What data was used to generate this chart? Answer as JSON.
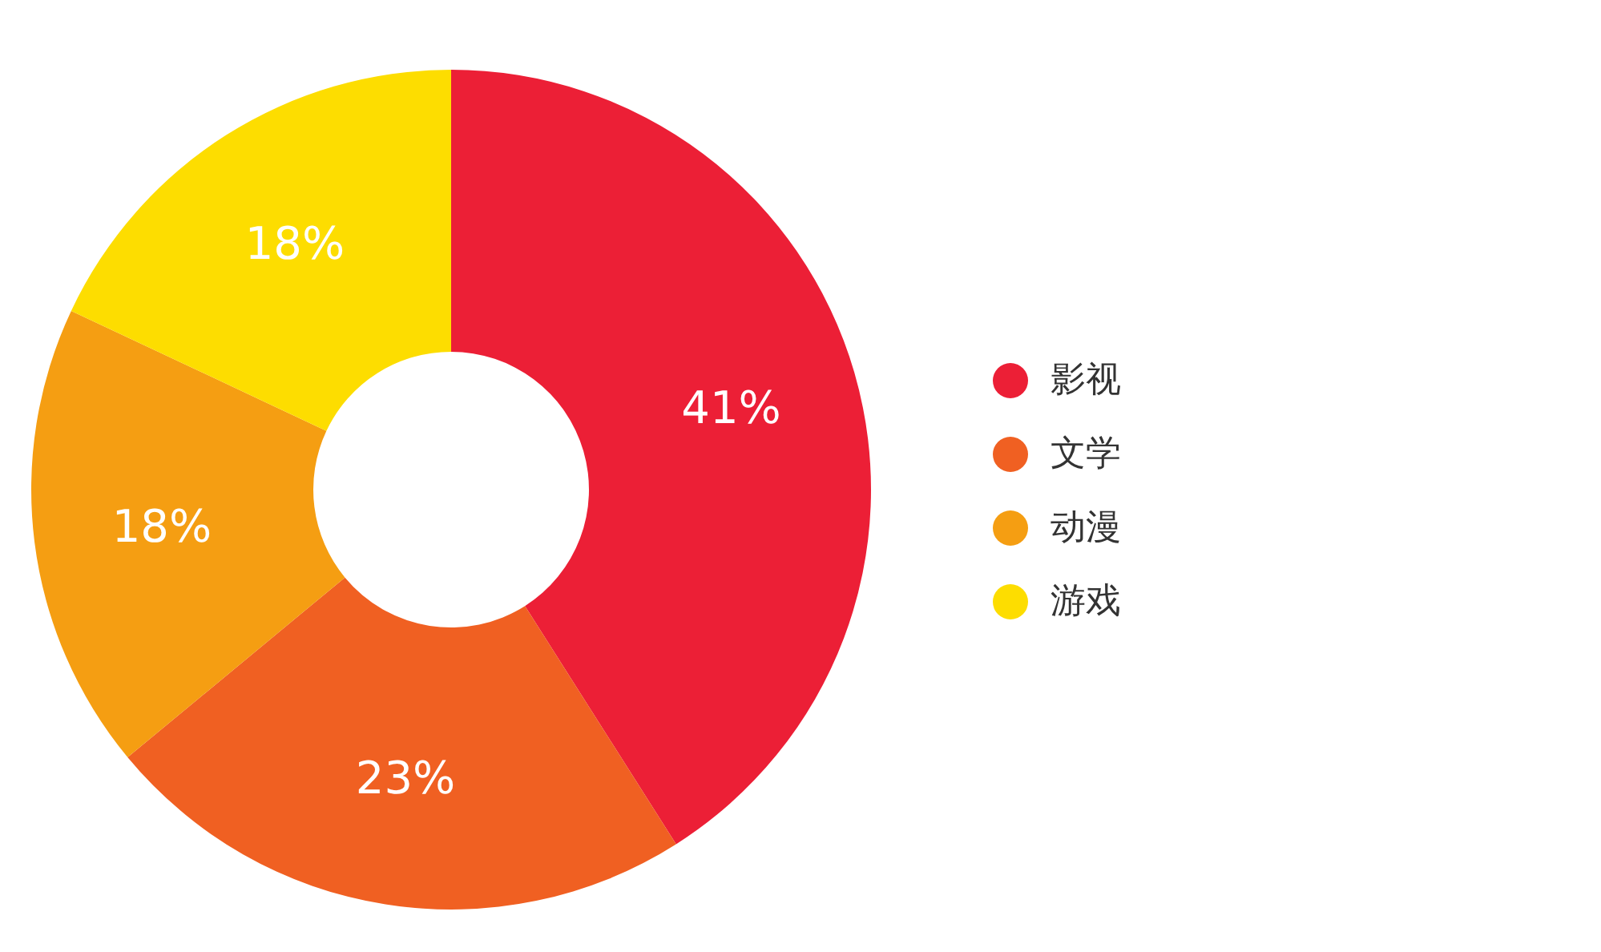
{
  "chart_data": {
    "type": "donut",
    "categories": [
      "影视",
      "文学",
      "动漫",
      "游戏"
    ],
    "values": [
      41,
      23,
      18,
      18
    ],
    "colors": [
      "#ec1f36",
      "#f06022",
      "#f59e12",
      "#fddd00"
    ],
    "value_labels": [
      "41%",
      "23%",
      "18%",
      "18%"
    ],
    "legend": "right"
  }
}
